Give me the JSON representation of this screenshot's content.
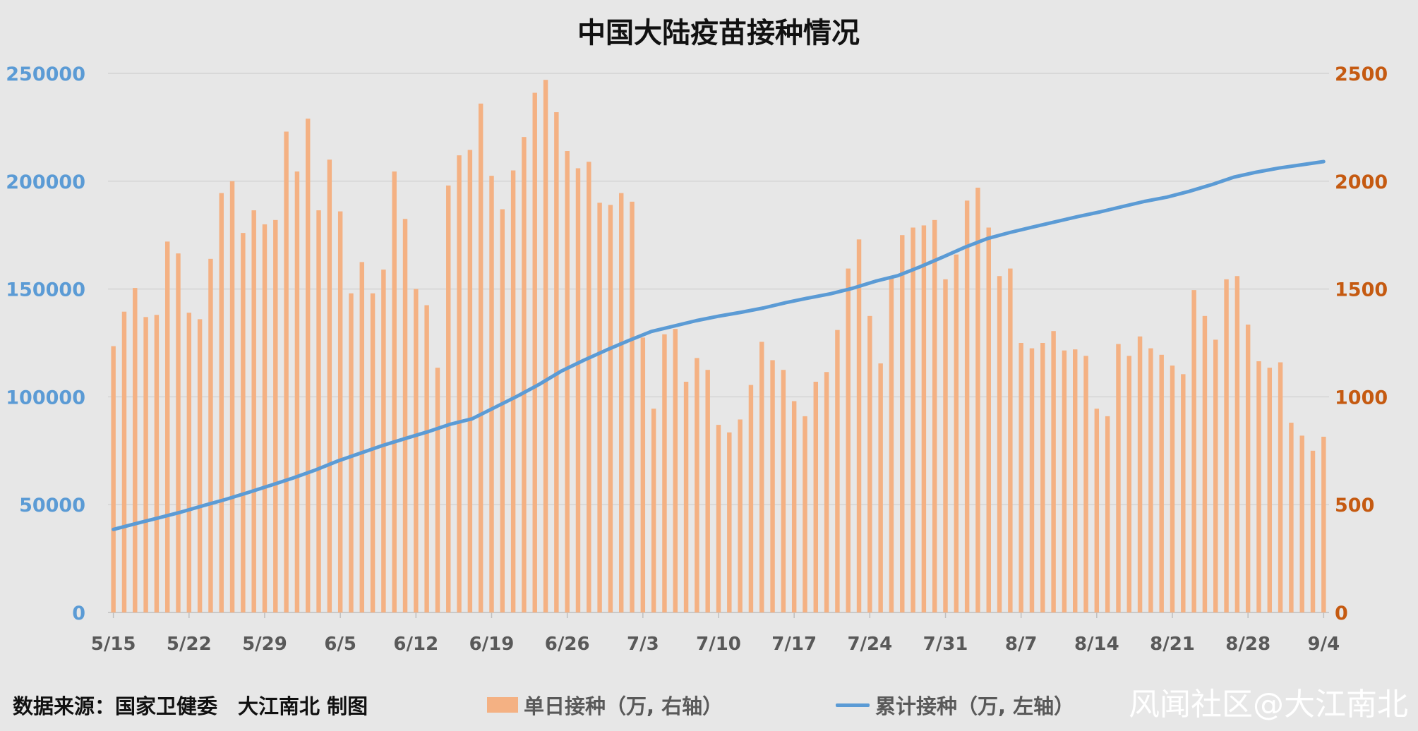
{
  "chart_data": {
    "type": "bar+line",
    "title": "中国大陆疫苗接种情况",
    "left_axis": {
      "ticks": [
        "0",
        "50000",
        "100000",
        "150000",
        "200000",
        "250000"
      ],
      "ylim": [
        0,
        250000
      ],
      "color": "#5b9bd5"
    },
    "right_axis": {
      "ticks": [
        "0",
        "500",
        "1000",
        "1500",
        "2000",
        "2500"
      ],
      "ylim": [
        0,
        2500
      ],
      "color": "#c55a11"
    },
    "x_tick_labels": [
      "5/15",
      "5/22",
      "5/29",
      "6/5",
      "6/12",
      "6/19",
      "6/26",
      "7/3",
      "7/10",
      "7/17",
      "7/24",
      "7/31",
      "8/7",
      "8/14",
      "8/21",
      "8/28",
      "9/4"
    ],
    "grid": true,
    "series": [
      {
        "name": "单日接种（万, 右轴）",
        "type": "bar",
        "axis": "right",
        "color": "#f4b183",
        "values": [
          1235,
          1395,
          1505,
          1370,
          1380,
          1720,
          1665,
          1390,
          1360,
          1640,
          1945,
          2000,
          1760,
          1865,
          1800,
          1820,
          2230,
          2045,
          2290,
          1865,
          2100,
          1860,
          1480,
          1625,
          1480,
          1590,
          2045,
          1825,
          1500,
          1425,
          1135,
          1980,
          2120,
          2145,
          2360,
          2025,
          1870,
          2050,
          2205,
          2410,
          2470,
          2320,
          2140,
          2060,
          2090,
          1900,
          1890,
          1945,
          1905,
          1275,
          945,
          1290,
          1315,
          1070,
          1180,
          1125,
          870,
          835,
          895,
          1055,
          1255,
          1170,
          1125,
          980,
          910,
          1070,
          1115,
          1310,
          1595,
          1730,
          1375,
          1155,
          1560,
          1750,
          1785,
          1795,
          1820,
          1545,
          1660,
          1910,
          1970,
          1785,
          1560,
          1595,
          1250,
          1225,
          1250,
          1305,
          1215,
          1220,
          1190,
          945,
          910,
          1245,
          1190,
          1280,
          1225,
          1195,
          1145,
          1105,
          1495,
          1375,
          1265,
          1545,
          1560,
          1335,
          1165,
          1135,
          1160,
          880,
          820,
          750,
          815
        ],
        "points": 113
      },
      {
        "name": "累计接种（万, 左轴）",
        "type": "line",
        "axis": "left",
        "color": "#5b9bd5",
        "x_start": "5/15",
        "x_end": "9/4",
        "values": [
          38500,
          41200,
          43800,
          46500,
          49500,
          52400,
          55600,
          58900,
          62300,
          66000,
          70200,
          73800,
          77400,
          80600,
          83700,
          87200,
          89800,
          95000,
          100200,
          105800,
          112000,
          117000,
          121700,
          126100,
          130300,
          132800,
          135300,
          137400,
          139200,
          141200,
          143700,
          145800,
          147800,
          150400,
          153600,
          156200,
          160300,
          164800,
          169400,
          173400,
          176200,
          178700,
          181100,
          183500,
          185700,
          188200,
          190600,
          192600,
          195300,
          198400,
          201900,
          204200,
          206100,
          207600,
          209100
        ]
      }
    ]
  },
  "source_label": "数据来源：国家卫健委　大江南北 制图",
  "legend": {
    "bar_label": "单日接种（万, 右轴）",
    "line_label": "累计接种（万, 左轴）"
  },
  "watermark": "风闻社区@大江南北"
}
